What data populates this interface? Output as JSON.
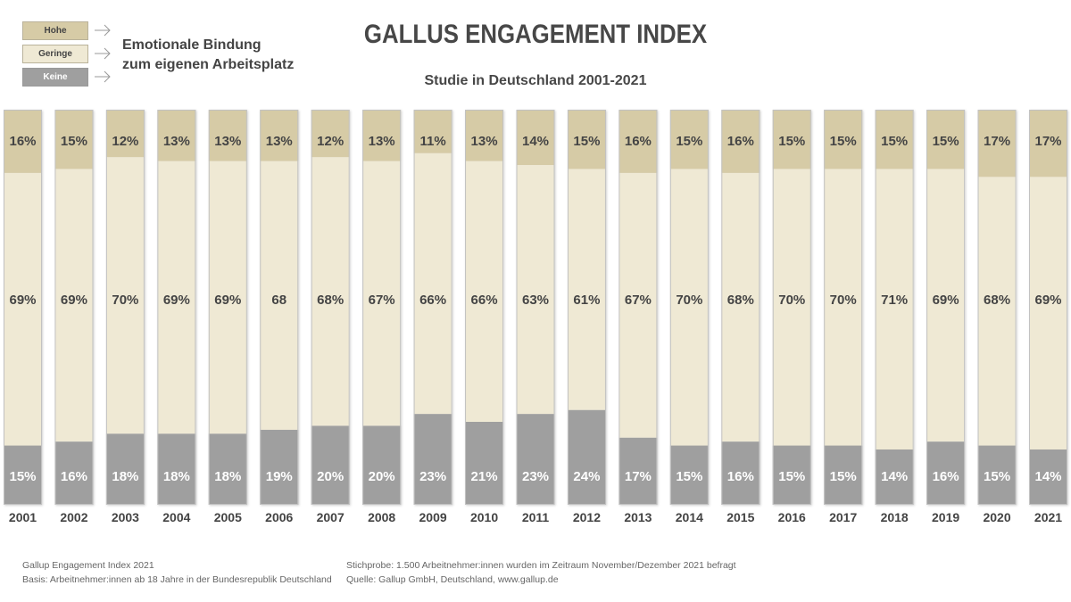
{
  "header": {
    "title": "GALLUS ENGAGEMENT INDEX",
    "subtitle": "Studie in Deutschland 2001-2021"
  },
  "legend": {
    "items": [
      {
        "label": "Hohe",
        "color": "#d6cba6",
        "text_color": "#444444"
      },
      {
        "label": "Geringe",
        "color": "#efe9d4",
        "text_color": "#444444"
      },
      {
        "label": "Keine",
        "color": "#9f9f9f",
        "text_color": "#ffffff"
      }
    ],
    "description_line1": "Emotionale Bindung",
    "description_line2": "zum eigenen Arbeitsplatz"
  },
  "footer": {
    "left_line1": "Gallup Engagement Index 2021",
    "left_line2": "Basis: Arbeitnehmer:innen ab 18 Jahre in der Bundesrepublik Deutschland",
    "right_line1": "Stichprobe: 1.500 Arbeitnehmer:innen wurden im Zeitraum November/Dezember 2021 befragt",
    "right_line2": "Quelle: Gallup GmbH, Deutschland, www.gallup.de"
  },
  "chart_data": {
    "type": "bar",
    "stacked": true,
    "orientation": "vertical",
    "title": "GALLUS ENGAGEMENT INDEX",
    "subtitle": "Studie in Deutschland 2001-2021",
    "xlabel": "",
    "ylabel": "",
    "ylim": [
      0,
      100
    ],
    "grid": false,
    "legend_position": "top-left",
    "categories": [
      "2001",
      "2002",
      "2003",
      "2004",
      "2005",
      "2006",
      "2007",
      "2008",
      "2009",
      "2010",
      "2011",
      "2012",
      "2013",
      "2014",
      "2015",
      "2016",
      "2017",
      "2018",
      "2019",
      "2020",
      "2021"
    ],
    "series": [
      {
        "name": "Keine",
        "color": "#9f9f9f",
        "label_color": "#ffffff",
        "values": [
          15,
          16,
          18,
          18,
          18,
          19,
          20,
          20,
          23,
          21,
          23,
          24,
          17,
          15,
          16,
          15,
          15,
          14,
          16,
          15,
          14
        ],
        "labels": [
          "15%",
          "16%",
          "18%",
          "18%",
          "18%",
          "19%",
          "20%",
          "20%",
          "23%",
          "21%",
          "23%",
          "24%",
          "17%",
          "15%",
          "16%",
          "15%",
          "15%",
          "14%",
          "16%",
          "15%",
          "14%"
        ]
      },
      {
        "name": "Geringe",
        "color": "#efe9d4",
        "label_color": "#444444",
        "values": [
          69,
          69,
          70,
          69,
          69,
          68,
          68,
          67,
          66,
          66,
          63,
          61,
          67,
          70,
          68,
          70,
          70,
          71,
          69,
          68,
          69
        ],
        "labels": [
          "69%",
          "69%",
          "70%",
          "69%",
          "69%",
          "68",
          "68%",
          "67%",
          "66%",
          "66%",
          "63%",
          "61%",
          "67%",
          "70%",
          "68%",
          "70%",
          "70%",
          "71%",
          "69%",
          "68%",
          "69%"
        ]
      },
      {
        "name": "Hohe",
        "color": "#d6cba6",
        "label_color": "#444444",
        "values": [
          16,
          15,
          12,
          13,
          13,
          13,
          12,
          13,
          11,
          13,
          14,
          15,
          16,
          15,
          16,
          15,
          15,
          15,
          15,
          17,
          17
        ],
        "labels": [
          "16%",
          "15%",
          "12%",
          "13%",
          "13%",
          "13%",
          "12%",
          "13%",
          "11%",
          "13%",
          "14%",
          "15%",
          "16%",
          "15%",
          "16%",
          "15%",
          "15%",
          "15%",
          "15%",
          "17%",
          "17%"
        ]
      }
    ]
  }
}
